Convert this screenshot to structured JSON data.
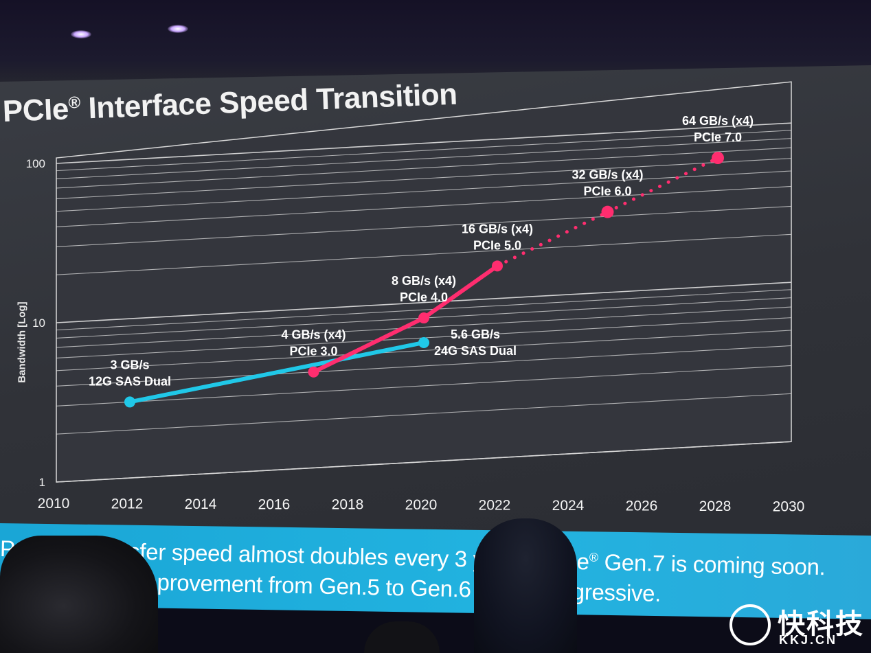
{
  "slide": {
    "title_main": "PCIe",
    "title_reg": "®",
    "title_rest": " Interface Speed Transition",
    "ylabel": "Bandwidth [Log]",
    "banner_line1_a": "PCIe",
    "banner_line1_b": " IF transfer speed almost doubles every 3 years. PCIe",
    "banner_line1_c": " Gen.7 is coming soon.",
    "banner_line2": "Performance improvement from Gen.5 to Gen.6 is very aggressive.",
    "reg": "®"
  },
  "watermark": {
    "cn": "快科技",
    "en": "KKJ.CN"
  },
  "colors": {
    "pcie": "#ff2d6f",
    "sas": "#20c8e8",
    "grid": "#d9d9d9",
    "text": "#ffffff",
    "banner": "#1fb0df"
  },
  "chart_data": {
    "type": "line",
    "title": "PCIe® Interface Speed Transition",
    "ylabel": "Bandwidth [Log]",
    "xlabel": "",
    "y_scale": "log",
    "xlim": [
      2010,
      2030
    ],
    "ylim": [
      1,
      100
    ],
    "x_ticks": [
      "2010",
      "2012",
      "2014",
      "2016",
      "2018",
      "2020",
      "2022",
      "2024",
      "2026",
      "2028",
      "2030"
    ],
    "y_ticks": [
      "1",
      "10",
      "100"
    ],
    "grid": true,
    "series": [
      {
        "color": "#20c8e8",
        "points": [
          {
            "x": 2012,
            "y": 3,
            "label1": "3 GB/s",
            "label2": "12G SAS Dual"
          },
          {
            "x": 2020,
            "y": 5.6,
            "label1": "5.6 GB/s",
            "label2": "24G SAS Dual"
          }
        ]
      },
      {
        "color": "#ff2d6f",
        "points": [
          {
            "x": 2017,
            "y": 4,
            "label1": "4 GB/s (x4)",
            "label2": "PCIe 3.0",
            "style": "solid"
          },
          {
            "x": 2020,
            "y": 8,
            "label1": "8 GB/s (x4)",
            "label2": "PCIe 4.0",
            "style": "solid"
          },
          {
            "x": 2022,
            "y": 16,
            "label1": "16 GB/s (x4)",
            "label2": "PCIe 5.0",
            "style": "solid"
          },
          {
            "x": 2025,
            "y": 32,
            "label1": "32 GB/s (x4)",
            "label2": "PCIe 6.0",
            "style": "dotted"
          },
          {
            "x": 2028,
            "y": 64,
            "label1": "64 GB/s (x4)",
            "label2": "PCIe 7.0",
            "style": "dotted"
          }
        ]
      }
    ]
  }
}
